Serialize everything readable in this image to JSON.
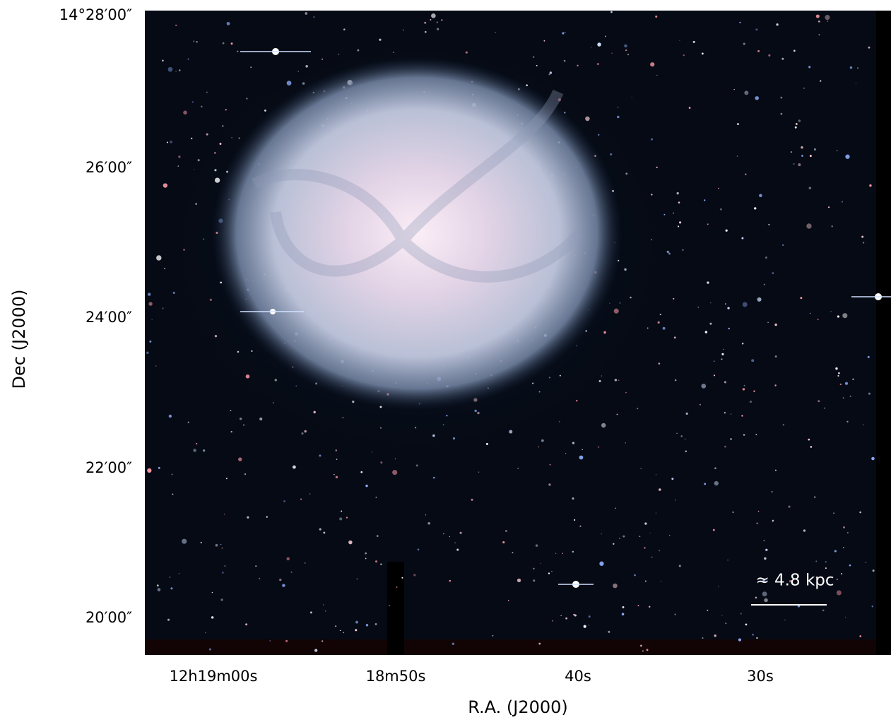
{
  "y_axis": {
    "label": "Dec (J2000)",
    "ticks": [
      "14°28′00″",
      "26′00″",
      "24′00″",
      "22′00″",
      "20′00″"
    ]
  },
  "x_axis": {
    "label": "R.A. (J2000)",
    "ticks": [
      "12h19m00s",
      "18m50s",
      "40s",
      "30s"
    ]
  },
  "scale_bar": {
    "label": "≈ 4.8 kpc"
  }
}
